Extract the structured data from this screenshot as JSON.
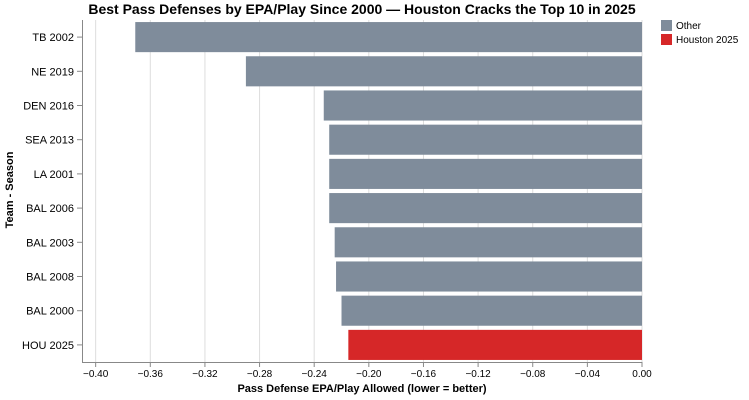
{
  "chart_data": {
    "type": "bar",
    "orientation": "horizontal",
    "title": "Best Pass Defenses by EPA/Play Since 2000 — Houston Cracks the Top 10 in 2025",
    "xlabel": "Pass Defense EPA/Play Allowed (lower = better)",
    "ylabel": "Team - Season",
    "xlim": [
      -0.41,
      0.0
    ],
    "xticks": [
      -0.4,
      -0.36,
      -0.32,
      -0.28,
      -0.24,
      -0.2,
      -0.16,
      -0.12,
      -0.08,
      -0.04,
      0.0
    ],
    "xtick_labels": [
      "−0.40",
      "−0.36",
      "−0.32",
      "−0.28",
      "−0.24",
      "−0.20",
      "−0.16",
      "−0.12",
      "−0.08",
      "−0.04",
      "0.00"
    ],
    "grid": true,
    "legend_position": "top-right",
    "categories": [
      "TB 2002",
      "NE 2019",
      "DEN 2016",
      "SEA 2013",
      "LA 2001",
      "BAL 2006",
      "BAL 2003",
      "BAL 2008",
      "BAL 2000",
      "HOU 2025"
    ],
    "values": [
      -0.371,
      -0.29,
      -0.233,
      -0.229,
      -0.229,
      -0.229,
      -0.225,
      -0.224,
      -0.22,
      -0.215
    ],
    "groups": [
      "Other",
      "Other",
      "Other",
      "Other",
      "Other",
      "Other",
      "Other",
      "Other",
      "Other",
      "Houston 2025"
    ],
    "legend": [
      {
        "label": "Other",
        "color": "#7f8c9b"
      },
      {
        "label": "Houston 2025",
        "color": "#d62728"
      }
    ]
  }
}
